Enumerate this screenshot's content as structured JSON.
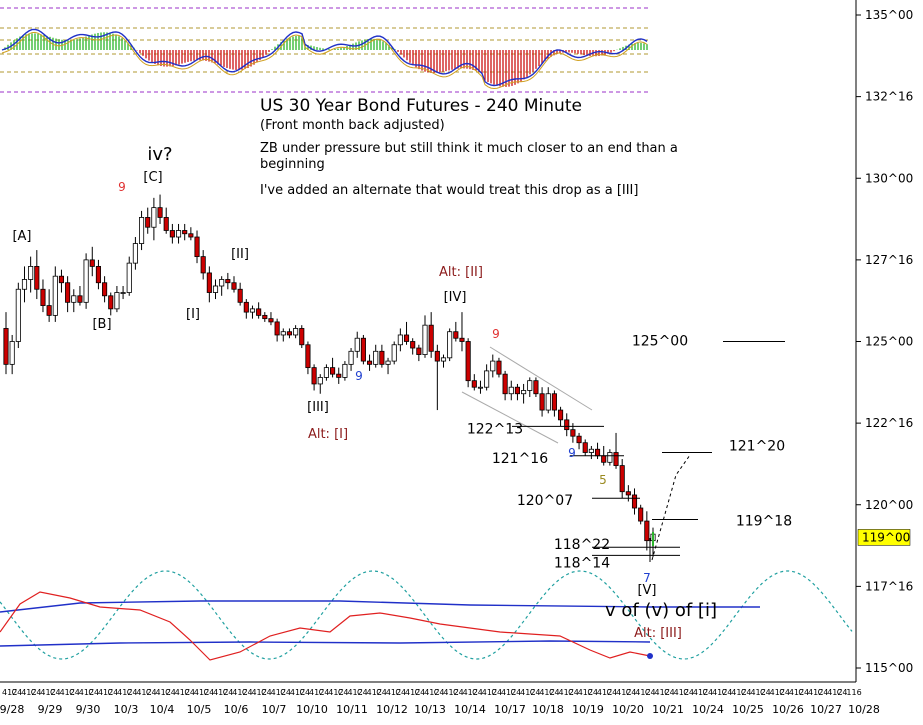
{
  "chart_data": {
    "type": "candlestick",
    "title": "US 30 Year Bond Futures - 240 Minute",
    "subtitle": "(Front month back adjusted)",
    "commentary": [
      "ZB under pressure but still think it much closer to an end than a beginning",
      "I've added an alternate that would treat this drop as a [III]"
    ],
    "y_axis_labels": [
      "135^00",
      "132^16",
      "130^00",
      "127^16",
      "125^00",
      "122^16",
      "120^00",
      "117^16",
      "115^00"
    ],
    "y_axis_values": [
      135,
      132.5,
      130,
      127.5,
      125,
      122.5,
      120,
      117.5,
      115
    ],
    "ylim": [
      114.9,
      135.3
    ],
    "x_axis_labels": [
      "9/28",
      "9/29",
      "9/30",
      "10/3",
      "10/4",
      "10/5",
      "10/6",
      "10/7",
      "10/10",
      "10/11",
      "10/12",
      "10/13",
      "10/14",
      "10/17",
      "10/18",
      "10/19",
      "10/20",
      "10/21",
      "10/24",
      "10/25",
      "10/26",
      "10/27",
      "10/28"
    ],
    "x_time_row": [
      "412",
      "C4",
      "412",
      "C4",
      "412",
      "C4",
      "412",
      "C4",
      "412",
      "C4",
      "412",
      "C4",
      "412",
      "C4",
      "412",
      "C4",
      "412",
      "C4",
      "412",
      "C4",
      "412",
      "C4",
      "412",
      "C4",
      "412",
      "C4",
      "412",
      "C4",
      "412",
      "C4",
      "412",
      "C4",
      "412",
      "C4",
      "412",
      "C4",
      "412",
      "C4",
      "412",
      "C4",
      "412",
      "C4",
      "412",
      "C4",
      "412",
      "C4",
      "412",
      "C4",
      "412",
      "C4",
      "412",
      "C4",
      "412",
      "C4",
      "412",
      "C4",
      "412",
      "C4",
      "412",
      "C4",
      "412",
      "C4",
      "412",
      "C4",
      "412",
      "C4",
      "412",
      "C4",
      "412",
      "C4",
      "412",
      "C4",
      "412",
      "C4",
      "412",
      "C4",
      "412",
      "C4",
      "412",
      "C4",
      "412",
      "C4",
      "412",
      "C4",
      "412",
      "C4",
      "412",
      "C4",
      "116"
    ],
    "current_price": "119^00",
    "candles": [
      [
        125.4,
        125.9,
        124.0,
        124.3
      ],
      [
        124.3,
        125.2,
        124.0,
        125.0
      ],
      [
        125.0,
        126.8,
        124.8,
        126.6
      ],
      [
        126.6,
        127.3,
        126.2,
        126.9
      ],
      [
        126.9,
        127.6,
        126.5,
        127.3
      ],
      [
        127.3,
        127.8,
        126.3,
        126.6
      ],
      [
        126.6,
        126.9,
        125.9,
        126.1
      ],
      [
        126.1,
        126.6,
        125.6,
        125.8
      ],
      [
        125.8,
        127.3,
        125.6,
        127.0
      ],
      [
        127.0,
        127.2,
        126.5,
        126.8
      ],
      [
        126.8,
        127.0,
        125.9,
        126.2
      ],
      [
        126.2,
        126.6,
        125.9,
        126.4
      ],
      [
        126.4,
        126.7,
        126.1,
        126.2
      ],
      [
        126.2,
        127.7,
        126.0,
        127.5
      ],
      [
        127.5,
        127.9,
        127.0,
        127.3
      ],
      [
        127.3,
        127.5,
        126.6,
        126.8
      ],
      [
        126.8,
        127.0,
        126.2,
        126.4
      ],
      [
        126.4,
        126.5,
        125.8,
        126.0
      ],
      [
        126.0,
        126.7,
        125.9,
        126.5
      ],
      [
        126.5,
        126.7,
        126.3,
        126.5
      ],
      [
        126.5,
        127.6,
        126.4,
        127.4
      ],
      [
        127.4,
        128.2,
        127.2,
        128.0
      ],
      [
        128.0,
        129.0,
        127.8,
        128.8
      ],
      [
        128.8,
        129.1,
        128.3,
        128.5
      ],
      [
        128.5,
        129.4,
        128.1,
        129.1
      ],
      [
        129.1,
        129.5,
        128.6,
        128.8
      ],
      [
        128.8,
        129.1,
        128.3,
        128.4
      ],
      [
        128.4,
        128.6,
        128.0,
        128.2
      ],
      [
        128.2,
        128.6,
        128.0,
        128.4
      ],
      [
        128.4,
        128.6,
        128.1,
        128.3
      ],
      [
        128.3,
        128.5,
        128.1,
        128.2
      ],
      [
        128.2,
        128.4,
        127.4,
        127.6
      ],
      [
        127.6,
        127.8,
        126.9,
        127.1
      ],
      [
        127.1,
        127.3,
        126.2,
        126.5
      ],
      [
        126.5,
        126.9,
        126.3,
        126.7
      ],
      [
        126.7,
        127.0,
        126.4,
        126.9
      ],
      [
        126.9,
        127.1,
        126.6,
        126.8
      ],
      [
        126.8,
        127.0,
        126.5,
        126.6
      ],
      [
        126.6,
        126.8,
        126.1,
        126.2
      ],
      [
        126.2,
        126.3,
        125.7,
        125.9
      ],
      [
        125.9,
        126.1,
        125.7,
        126.0
      ],
      [
        126.0,
        126.2,
        125.7,
        125.8
      ],
      [
        125.8,
        125.9,
        125.6,
        125.7
      ],
      [
        125.7,
        125.9,
        125.5,
        125.6
      ],
      [
        125.6,
        125.7,
        125.0,
        125.2
      ],
      [
        125.2,
        125.4,
        125.0,
        125.3
      ],
      [
        125.3,
        125.4,
        125.1,
        125.2
      ],
      [
        125.2,
        125.5,
        125.1,
        125.4
      ],
      [
        125.4,
        125.5,
        124.8,
        124.9
      ],
      [
        124.9,
        125.0,
        124.0,
        124.2
      ],
      [
        124.2,
        124.3,
        123.5,
        123.7
      ],
      [
        123.7,
        124.0,
        123.4,
        123.9
      ],
      [
        123.9,
        124.3,
        123.8,
        124.2
      ],
      [
        124.2,
        124.5,
        123.9,
        124.0
      ],
      [
        124.0,
        124.2,
        123.7,
        123.9
      ],
      [
        123.9,
        124.4,
        123.8,
        124.3
      ],
      [
        124.3,
        124.8,
        124.1,
        124.7
      ],
      [
        124.7,
        125.3,
        124.5,
        125.1
      ],
      [
        125.1,
        125.2,
        124.3,
        124.4
      ],
      [
        124.4,
        124.6,
        124.1,
        124.3
      ],
      [
        124.3,
        124.9,
        124.2,
        124.7
      ],
      [
        124.7,
        124.9,
        124.2,
        124.3
      ],
      [
        124.3,
        124.5,
        124.0,
        124.4
      ],
      [
        124.4,
        125.0,
        124.3,
        124.9
      ],
      [
        124.9,
        125.4,
        124.7,
        125.2
      ],
      [
        125.2,
        125.6,
        124.9,
        125.0
      ],
      [
        125.0,
        125.1,
        124.6,
        124.8
      ],
      [
        124.8,
        124.9,
        124.4,
        124.6
      ],
      [
        124.6,
        125.8,
        124.5,
        125.5
      ],
      [
        125.5,
        125.9,
        124.5,
        124.7
      ],
      [
        124.7,
        124.9,
        122.9,
        124.4
      ],
      [
        124.4,
        124.6,
        124.2,
        124.5
      ],
      [
        124.5,
        125.4,
        124.4,
        125.3
      ],
      [
        125.3,
        125.6,
        125.0,
        125.1
      ],
      [
        125.1,
        125.9,
        124.7,
        125.0
      ],
      [
        125.0,
        125.1,
        123.6,
        123.8
      ],
      [
        123.8,
        124.0,
        123.5,
        123.6
      ],
      [
        123.6,
        123.8,
        123.4,
        123.6
      ],
      [
        123.6,
        124.3,
        123.5,
        124.1
      ],
      [
        124.1,
        124.6,
        123.9,
        124.4
      ],
      [
        124.4,
        124.5,
        123.9,
        124.0
      ],
      [
        124.0,
        124.1,
        123.2,
        123.4
      ],
      [
        123.4,
        123.8,
        123.2,
        123.6
      ],
      [
        123.6,
        123.7,
        123.2,
        123.4
      ],
      [
        123.4,
        123.7,
        123.1,
        123.5
      ],
      [
        123.5,
        123.9,
        123.3,
        123.8
      ],
      [
        123.8,
        123.9,
        123.3,
        123.4
      ],
      [
        123.4,
        123.6,
        122.7,
        122.9
      ],
      [
        122.9,
        123.6,
        122.8,
        123.4
      ],
      [
        123.4,
        123.5,
        122.7,
        122.9
      ],
      [
        122.9,
        123.0,
        122.4,
        122.6
      ],
      [
        122.6,
        122.8,
        122.1,
        122.3
      ],
      [
        122.3,
        122.5,
        121.9,
        122.1
      ],
      [
        122.1,
        122.2,
        121.7,
        121.9
      ],
      [
        121.9,
        122.0,
        121.5,
        121.6
      ],
      [
        121.6,
        121.8,
        121.4,
        121.7
      ],
      [
        121.7,
        121.9,
        121.4,
        121.5
      ],
      [
        121.5,
        121.8,
        121.2,
        121.3
      ],
      [
        121.3,
        121.7,
        121.2,
        121.6
      ],
      [
        121.6,
        122.2,
        121.1,
        121.2
      ],
      [
        121.2,
        121.4,
        120.2,
        120.4
      ],
      [
        120.4,
        120.6,
        120.1,
        120.3
      ],
      [
        120.3,
        120.5,
        119.7,
        119.9
      ],
      [
        119.9,
        120.0,
        119.4,
        119.5
      ],
      [
        119.5,
        119.8,
        118.6,
        118.9
      ],
      [
        118.9,
        119.3,
        118.4,
        119.1
      ]
    ],
    "horizontal_levels": [
      {
        "label": "125^00",
        "value": 125.0
      },
      {
        "label": "122^13",
        "value": 122.4
      },
      {
        "label": "121^16",
        "value": 121.5
      },
      {
        "label": "121^20",
        "value": 121.6
      },
      {
        "label": "120^07",
        "value": 120.2
      },
      {
        "label": "119^18",
        "value": 119.55
      },
      {
        "label": "118^22",
        "value": 118.7
      },
      {
        "label": "118^14",
        "value": 118.45
      }
    ],
    "wave_labels": [
      {
        "text": "iv?",
        "color": "#000000"
      },
      {
        "text": "[C]",
        "color": "#000000"
      },
      {
        "text": "[A]",
        "color": "#000000"
      },
      {
        "text": "[B]",
        "color": "#000000"
      },
      {
        "text": "[I]",
        "color": "#000000"
      },
      {
        "text": "[II]",
        "color": "#000000"
      },
      {
        "text": "[III]",
        "color": "#000000"
      },
      {
        "text": "Alt: [I]",
        "color": "#8b1a1a"
      },
      {
        "text": "Alt: [II]",
        "color": "#8b1a1a"
      },
      {
        "text": "[IV]",
        "color": "#000000"
      },
      {
        "text": "[V]",
        "color": "#000000"
      },
      {
        "text": "v of (v) of [i]",
        "color": "#000000"
      },
      {
        "text": "Alt: [III]",
        "color": "#8b1a1a"
      }
    ],
    "count_labels": [
      {
        "text": "9",
        "color": "#e03030"
      },
      {
        "text": "9",
        "color": "#2040d0"
      },
      {
        "text": "9",
        "color": "#e03030"
      },
      {
        "text": "9",
        "color": "#2040d0"
      },
      {
        "text": "5",
        "color": "#9a8a20"
      },
      {
        "text": "7",
        "color": "#2040d0"
      }
    ],
    "grid": false,
    "colors": {
      "up": "#ffffff",
      "down": "#cc0000",
      "wick": "#000000",
      "current_price_bg": "#ffff00"
    }
  }
}
